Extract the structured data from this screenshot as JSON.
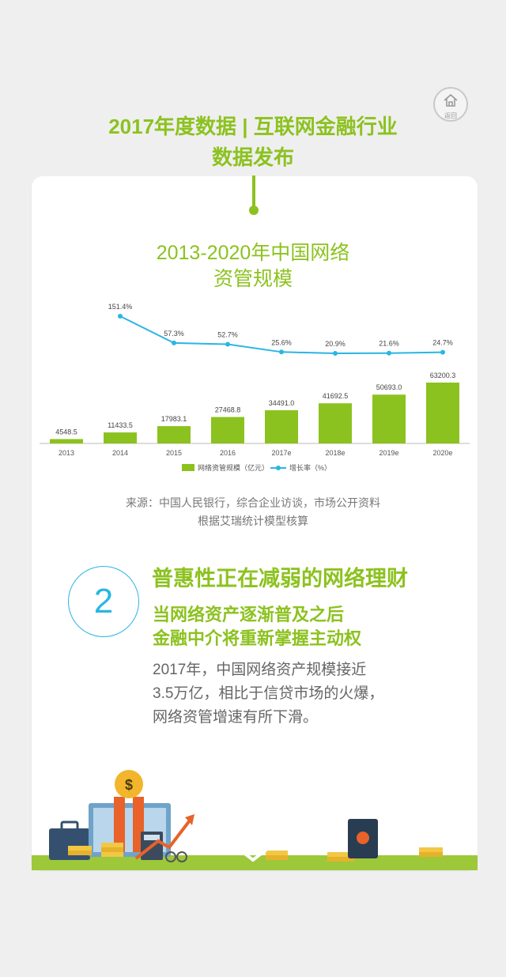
{
  "header": {
    "title_line1": "2017年度数据 | 互联网金融行业",
    "title_line2": "数据发布",
    "home_label": "返回",
    "home_icon": "home-icon"
  },
  "chart_title": {
    "line1": "2013-2020年中国网络",
    "line2": "资管规模"
  },
  "chart_data": {
    "type": "bar",
    "categories": [
      "2013",
      "2014",
      "2015",
      "2016",
      "2017e",
      "2018e",
      "2019e",
      "2020e"
    ],
    "series": [
      {
        "name": "网络资管规模（亿元）",
        "type": "bar",
        "color": "#8cc21f",
        "values": [
          4548.5,
          11433.5,
          17983.1,
          27468.8,
          34491.0,
          41692.5,
          50693.0,
          63200.3
        ],
        "labels": [
          "4548.5",
          "11433.5",
          "17983.1",
          "27468.8",
          "34491.0",
          "41692.5",
          "50693.0",
          "63200.3"
        ]
      },
      {
        "name": "增长率（%）",
        "type": "line",
        "color": "#29b6e3",
        "values": [
          null,
          151.4,
          57.3,
          52.7,
          25.6,
          20.9,
          21.6,
          24.7
        ],
        "labels": [
          "",
          "151.4%",
          "57.3%",
          "52.7%",
          "25.6%",
          "20.9%",
          "21.6%",
          "24.7%"
        ]
      }
    ],
    "legend_position": "bottom-center",
    "grid": false
  },
  "source": {
    "line1": "来源：中国人民银行，综合企业访谈，市场公开资料",
    "line2": "根据艾瑞统计模型核算"
  },
  "section": {
    "number": "2",
    "title": "普惠性正在减弱的网络理财",
    "subtitle1": "当网络资产逐渐普及之后",
    "subtitle2": "金融中介将重新掌握主动权",
    "body": [
      "2017年，中国网络资产规模接近",
      "3.5万亿，相比于信贷市场的火爆，",
      "网络资管增速有所下滑。"
    ]
  },
  "illustration": {
    "coin_symbol": "$",
    "icons": [
      "briefcase-icon",
      "monitor-icon",
      "coin-hands-icon",
      "calculator-icon",
      "glasses-icon",
      "growth-arrow-icon",
      "coin-stack-icon",
      "safe-icon",
      "scroll-down-icon"
    ]
  },
  "colors": {
    "accent": "#8cc21f",
    "line": "#29b6e3",
    "background": "#efefef",
    "card": "#ffffff"
  }
}
